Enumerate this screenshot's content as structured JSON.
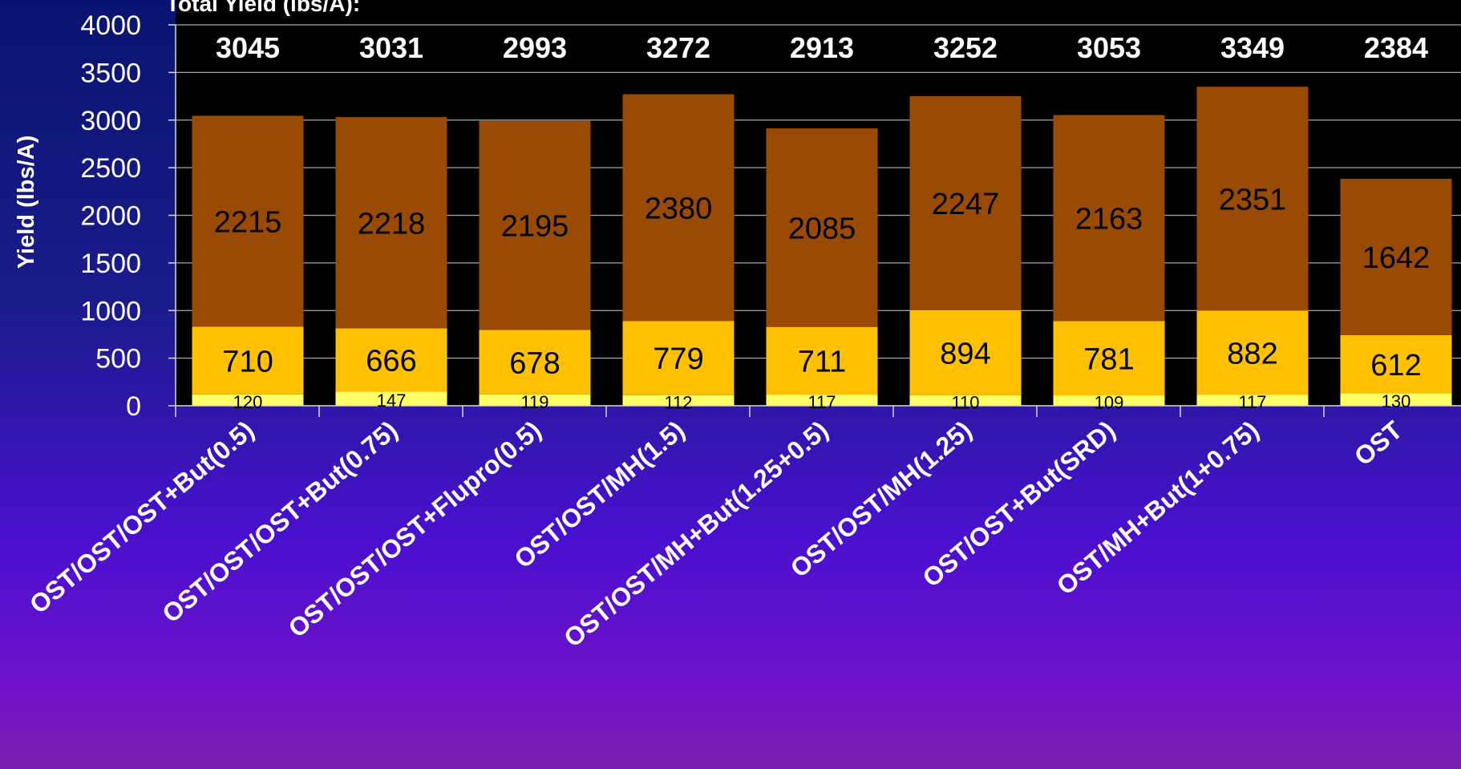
{
  "chart_data": {
    "type": "bar",
    "stacked": true,
    "totals_label": "Total Yield (lbs/A):",
    "ylabel": "Yield (lbs/A)",
    "xlabel": "",
    "ylim": [
      0,
      4000
    ],
    "yticks": [
      "0",
      "500",
      "1000",
      "1500",
      "2000",
      "2500",
      "3000",
      "3500",
      "4000"
    ],
    "grid": true,
    "categories": [
      "OST/OST/OST+But(0.5)",
      "OST/OST/OST+But(0.75)",
      "OST/OST/OST+Flupro(0.5)",
      "OST/OST/MH(1.5)",
      "OST/OST/MH+But(1.25+0.5)",
      "OST/OST/MH(1.25)",
      "OST/OST+But(SRD)",
      "OST/MH+But(1+0.75)",
      "OST"
    ],
    "totals": [
      "3045",
      "3031",
      "2993",
      "3272",
      "2913",
      "3252",
      "3053",
      "3349",
      "2384"
    ],
    "series": [
      {
        "values": [
          120,
          147,
          119,
          112,
          117,
          110,
          109,
          117,
          130
        ],
        "color": "#ffff66"
      },
      {
        "values": [
          710,
          666,
          678,
          779,
          711,
          894,
          781,
          882,
          612
        ],
        "color": "#ffc000"
      },
      {
        "values": [
          2215,
          2218,
          2195,
          2380,
          2085,
          2247,
          2163,
          2351,
          1642
        ],
        "color": "#994a04"
      }
    ],
    "plot_background": "#000000",
    "text_color": "#ffffff"
  }
}
